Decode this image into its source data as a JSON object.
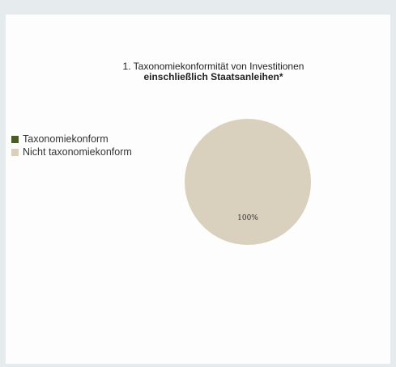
{
  "chart_data": {
    "type": "pie",
    "title": "1. Taxonomiekonformität von Investitionen",
    "subtitle": "einschließlich Staatsanleihen*",
    "legend_position": "left",
    "series": [
      {
        "name": "Taxonomiekonform",
        "value": 0,
        "color": "#4b5a29"
      },
      {
        "name": "Nicht taxonomiekonform",
        "value": 100,
        "color": "#d9d1bd"
      }
    ],
    "data_labels": [
      "",
      "100%"
    ]
  }
}
